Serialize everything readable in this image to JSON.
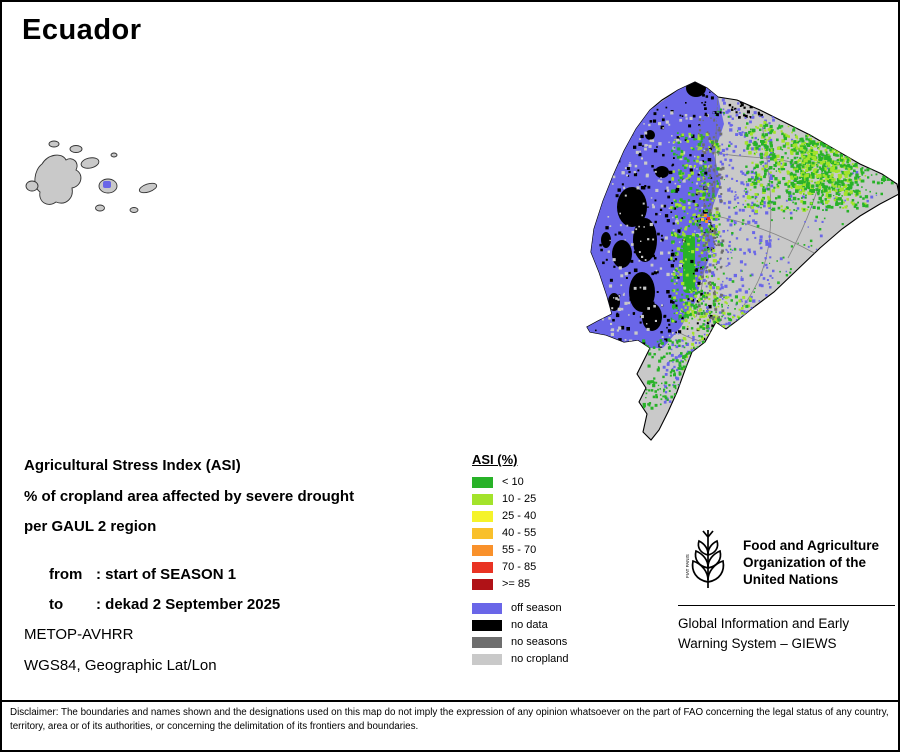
{
  "title": "Ecuador",
  "info": {
    "line1": "Agricultural Stress Index (ASI)",
    "line2": "% of cropland area affected by severe drought",
    "line3": "per GAUL 2 region",
    "from_label": "from",
    "from_value": ": start of SEASON 1",
    "to_label": "to",
    "to_value": ": dekad 2 September 2025",
    "sensor": "METOP-AVHRR",
    "projection": "WGS84, Geographic Lat/Lon"
  },
  "legend": {
    "title": "ASI (%)",
    "classes": [
      {
        "label": "< 10",
        "color": "#28b228"
      },
      {
        "label": "10 - 25",
        "color": "#a3e32b"
      },
      {
        "label": "25 - 40",
        "color": "#f5f32a"
      },
      {
        "label": "40 - 55",
        "color": "#f9c02b"
      },
      {
        "label": "55 - 70",
        "color": "#f9912b"
      },
      {
        "label": "70 - 85",
        "color": "#e93323"
      },
      {
        "label": ">= 85",
        "color": "#b01217"
      }
    ],
    "extra": [
      {
        "label": "off season",
        "color": "#6a66e8"
      },
      {
        "label": "no data",
        "color": "#000000"
      },
      {
        "label": "no seasons",
        "color": "#6e6e6e"
      },
      {
        "label": "no cropland",
        "color": "#c9c9c9"
      }
    ]
  },
  "fao": {
    "org_line1": "Food and Agriculture",
    "org_line2": "Organization of the",
    "org_line3": "United Nations",
    "motto": "FIAT PANIS",
    "giews_line1": "Global Information and Early",
    "giews_line2": "Warning System – GIEWS"
  },
  "disclaimer": "Disclaimer: The boundaries and names shown and the designations used on this map do not imply the expression of any opinion whatsoever on the part of FAO concerning the legal status of any country, territory, area or of its authorities, or concerning the delimitation of its frontiers and boundaries."
}
